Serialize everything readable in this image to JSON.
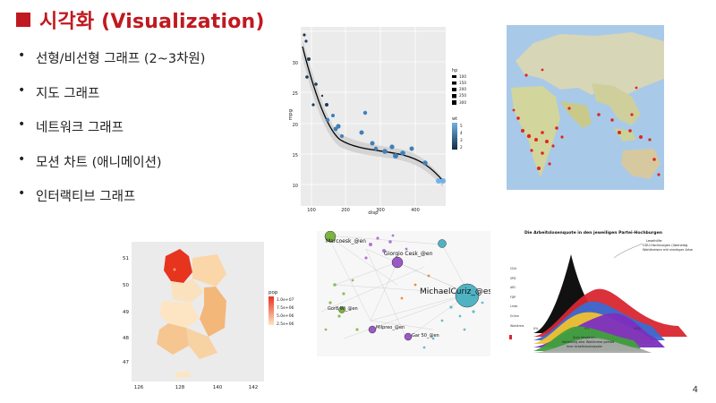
{
  "slide": {
    "title": "시각화 (Visualization)",
    "page_number": "4",
    "bullets": [
      "선형/비선형 그래프 (2~3차원)",
      "지도 그래프",
      "네트워크 그래프",
      "모션 차트 (애니메이션)",
      "인터랙티브 그래프"
    ]
  },
  "scatter_plot": {
    "xlabel": "disp",
    "ylabel": "mpg",
    "x_ticks": [
      "100",
      "200",
      "300",
      "400"
    ],
    "y_ticks": [
      "10",
      "15",
      "20",
      "25",
      "30"
    ],
    "legend_hp_title": "hp",
    "legend_hp_items": [
      "100",
      "150",
      "200",
      "250",
      "300"
    ],
    "legend_wt_title": "wt",
    "legend_wt_items": [
      "5",
      "4",
      "3",
      "2"
    ]
  },
  "korea_map": {
    "legend_title": "pop",
    "legend_items": [
      "1.0e+07",
      "7.5e+06",
      "5.0e+06",
      "2.5e+06"
    ],
    "x_ticks": [
      "126",
      "128",
      "140",
      "142"
    ],
    "y_ticks": [
      "51",
      "50",
      "49",
      "48",
      "47"
    ]
  },
  "network": {
    "labels": [
      "MichaelCuriz_@es",
      "Marcoesk_@en",
      "Giorgio Cesk_@en",
      "Gor8 Wi_@en",
      "Milpreo_@en",
      "Gar 50_@en"
    ]
  },
  "ridgeline": {
    "title": "Die Arbeitslosenquote in den jeweiligen Partei-Hochburgen",
    "annotation_right": [
      "Leseihilfe:",
      "CDU-Hochburgen (überwieg",
      "Wahlkreisen mit niedriger Arbe"
    ],
    "annotation_bottom": [
      "Zum Vergleich:",
      "Verteilung aller Wahlkreise gemäß",
      "ihrer Arbeitslosenquote"
    ],
    "x_ticks": [
      "0%",
      "5%",
      "10%"
    ],
    "row_labels": [
      "CDU",
      "SPD",
      "AfD",
      "FDP",
      "Linke",
      "Grüne",
      "Wahlkreis"
    ]
  }
}
